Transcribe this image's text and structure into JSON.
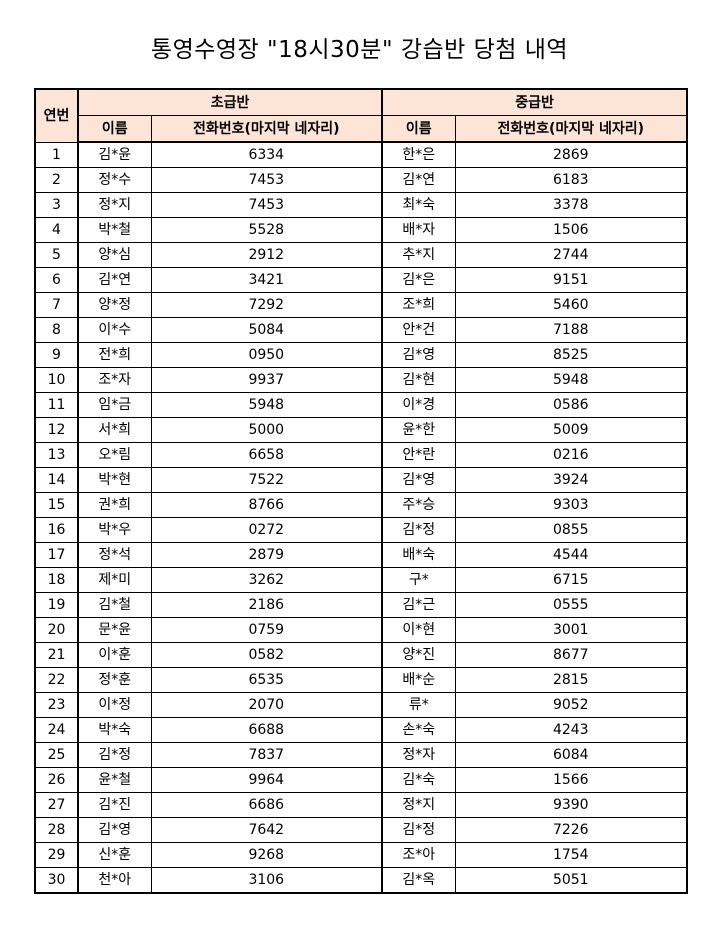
{
  "title": "통영수영장 \"18시30분\" 강습반 당첨 내역",
  "table": {
    "col_no": "연번",
    "groups": [
      "초급반",
      "중급반"
    ],
    "col_name": "이름",
    "col_phone": "전화번호(마지막 네자리)",
    "header_color": "#fce4d6",
    "rows": [
      {
        "no": "1",
        "b_name": "김*윤",
        "b_phone": "6334",
        "i_name": "한*은",
        "i_phone": "2869"
      },
      {
        "no": "2",
        "b_name": "정*수",
        "b_phone": "7453",
        "i_name": "김*연",
        "i_phone": "6183"
      },
      {
        "no": "3",
        "b_name": "정*지",
        "b_phone": "7453",
        "i_name": "최*숙",
        "i_phone": "3378"
      },
      {
        "no": "4",
        "b_name": "박*철",
        "b_phone": "5528",
        "i_name": "배*자",
        "i_phone": "1506"
      },
      {
        "no": "5",
        "b_name": "양*심",
        "b_phone": "2912",
        "i_name": "추*지",
        "i_phone": "2744"
      },
      {
        "no": "6",
        "b_name": "김*연",
        "b_phone": "3421",
        "i_name": "김*은",
        "i_phone": "9151"
      },
      {
        "no": "7",
        "b_name": "양*정",
        "b_phone": "7292",
        "i_name": "조*희",
        "i_phone": "5460"
      },
      {
        "no": "8",
        "b_name": "이*수",
        "b_phone": "5084",
        "i_name": "안*건",
        "i_phone": "7188"
      },
      {
        "no": "9",
        "b_name": "전*희",
        "b_phone": "0950",
        "i_name": "김*영",
        "i_phone": "8525"
      },
      {
        "no": "10",
        "b_name": "조*자",
        "b_phone": "9937",
        "i_name": "김*현",
        "i_phone": "5948"
      },
      {
        "no": "11",
        "b_name": "임*금",
        "b_phone": "5948",
        "i_name": "이*경",
        "i_phone": "0586"
      },
      {
        "no": "12",
        "b_name": "서*희",
        "b_phone": "5000",
        "i_name": "윤*한",
        "i_phone": "5009"
      },
      {
        "no": "13",
        "b_name": "오*림",
        "b_phone": "6658",
        "i_name": "안*란",
        "i_phone": "0216"
      },
      {
        "no": "14",
        "b_name": "박*현",
        "b_phone": "7522",
        "i_name": "김*영",
        "i_phone": "3924"
      },
      {
        "no": "15",
        "b_name": "권*희",
        "b_phone": "8766",
        "i_name": "주*승",
        "i_phone": "9303"
      },
      {
        "no": "16",
        "b_name": "박*우",
        "b_phone": "0272",
        "i_name": "김*정",
        "i_phone": "0855"
      },
      {
        "no": "17",
        "b_name": "정*석",
        "b_phone": "2879",
        "i_name": "배*숙",
        "i_phone": "4544"
      },
      {
        "no": "18",
        "b_name": "제*미",
        "b_phone": "3262",
        "i_name": "구*",
        "i_phone": "6715"
      },
      {
        "no": "19",
        "b_name": "김*철",
        "b_phone": "2186",
        "i_name": "김*근",
        "i_phone": "0555"
      },
      {
        "no": "20",
        "b_name": "문*윤",
        "b_phone": "0759",
        "i_name": "이*현",
        "i_phone": "3001"
      },
      {
        "no": "21",
        "b_name": "이*훈",
        "b_phone": "0582",
        "i_name": "양*진",
        "i_phone": "8677"
      },
      {
        "no": "22",
        "b_name": "정*훈",
        "b_phone": "6535",
        "i_name": "배*순",
        "i_phone": "2815"
      },
      {
        "no": "23",
        "b_name": "이*정",
        "b_phone": "2070",
        "i_name": "류*",
        "i_phone": "9052"
      },
      {
        "no": "24",
        "b_name": "박*숙",
        "b_phone": "6688",
        "i_name": "손*숙",
        "i_phone": "4243"
      },
      {
        "no": "25",
        "b_name": "김*정",
        "b_phone": "7837",
        "i_name": "정*자",
        "i_phone": "6084"
      },
      {
        "no": "26",
        "b_name": "윤*철",
        "b_phone": "9964",
        "i_name": "김*숙",
        "i_phone": "1566"
      },
      {
        "no": "27",
        "b_name": "김*진",
        "b_phone": "6686",
        "i_name": "정*지",
        "i_phone": "9390"
      },
      {
        "no": "28",
        "b_name": "김*영",
        "b_phone": "7642",
        "i_name": "김*정",
        "i_phone": "7226"
      },
      {
        "no": "29",
        "b_name": "신*훈",
        "b_phone": "9268",
        "i_name": "조*아",
        "i_phone": "1754"
      },
      {
        "no": "30",
        "b_name": "천*아",
        "b_phone": "3106",
        "i_name": "김*옥",
        "i_phone": "5051"
      }
    ]
  }
}
